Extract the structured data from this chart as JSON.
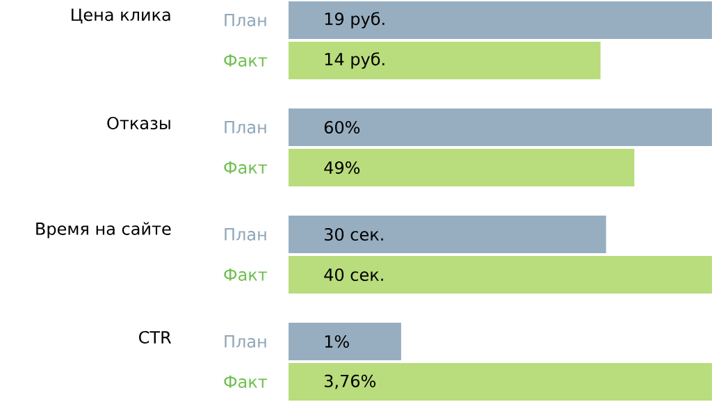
{
  "chart_data": [
    {
      "type": "bar",
      "orientation": "horizontal",
      "title": "Цена клика",
      "categories": [
        "План",
        "Факт"
      ],
      "values": [
        19,
        14
      ],
      "colors": [
        "#97aec0",
        "#b9dc7c"
      ],
      "value_labels": [
        "19 руб.",
        "14 руб."
      ]
    },
    {
      "type": "bar",
      "orientation": "horizontal",
      "title": "Отказы",
      "categories": [
        "План",
        "Факт"
      ],
      "values": [
        60,
        49
      ],
      "colors": [
        "#97aec0",
        "#b9dc7c"
      ],
      "value_labels": [
        "60%",
        "49%"
      ]
    },
    {
      "type": "bar",
      "orientation": "horizontal",
      "title": "Время на сайте",
      "categories": [
        "План",
        "Факт"
      ],
      "values": [
        30,
        40
      ],
      "colors": [
        "#97aec0",
        "#b9dc7c"
      ],
      "value_labels": [
        "30 сек.",
        "40 сек."
      ]
    },
    {
      "type": "bar",
      "orientation": "horizontal",
      "title": "CTR",
      "categories": [
        "План",
        "Факт"
      ],
      "values": [
        1,
        3.76
      ],
      "colors": [
        "#97aec0",
        "#b9dc7c"
      ],
      "value_labels": [
        "1%",
        "3,76%"
      ]
    }
  ]
}
